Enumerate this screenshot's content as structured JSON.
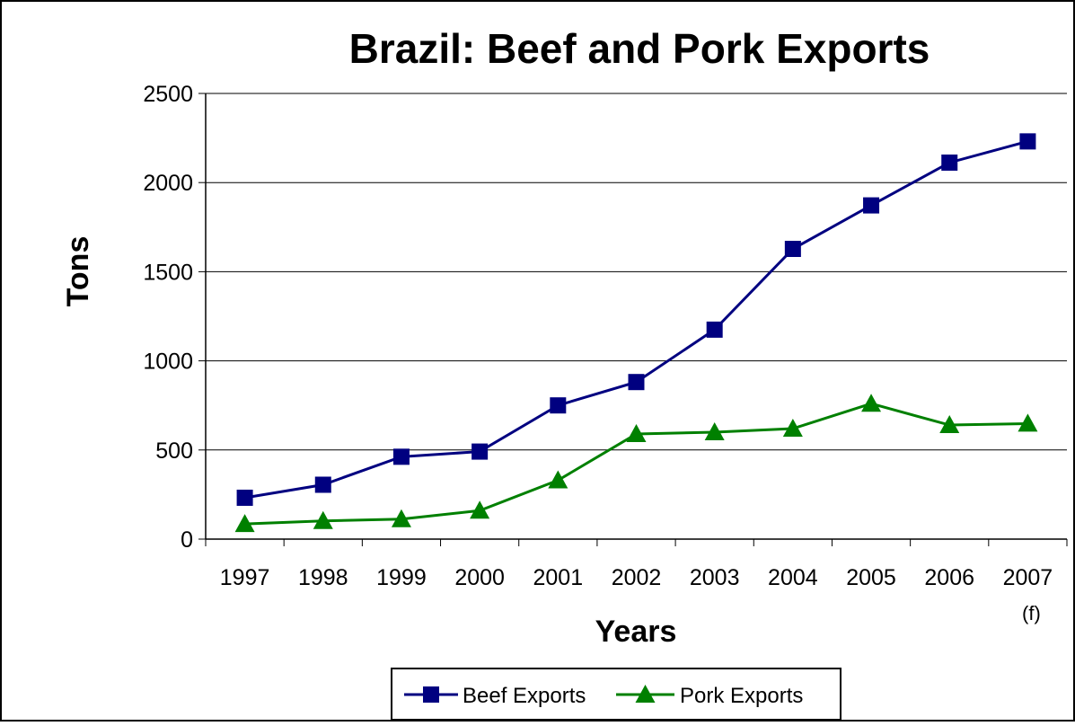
{
  "chart_data": {
    "type": "line",
    "title": "Brazil:  Beef and Pork Exports",
    "xlabel": "Years",
    "ylabel": "Tons",
    "categories": [
      "1997",
      "1998",
      "1999",
      "2000",
      "2001",
      "2002",
      "2003",
      "2004",
      "2005",
      "2006",
      "2007"
    ],
    "category_sublabels": [
      "",
      "",
      "",
      "",
      "",
      "",
      "",
      "",
      "",
      "",
      "(f)"
    ],
    "ylim": [
      0,
      2500
    ],
    "yticks": [
      "0",
      "500",
      "1000",
      "1500",
      "2000",
      "2500"
    ],
    "grid": true,
    "legend": "bottom",
    "series": [
      {
        "name": "Beef Exports",
        "color": "#000080",
        "marker": "square",
        "values": [
          232,
          305,
          462,
          491,
          750,
          881,
          1175,
          1628,
          1872,
          2112,
          2231
        ]
      },
      {
        "name": "Pork Exports",
        "color": "#008000",
        "marker": "triangle",
        "values": [
          85,
          102,
          112,
          160,
          330,
          590,
          600,
          620,
          760,
          640,
          648
        ]
      }
    ]
  }
}
